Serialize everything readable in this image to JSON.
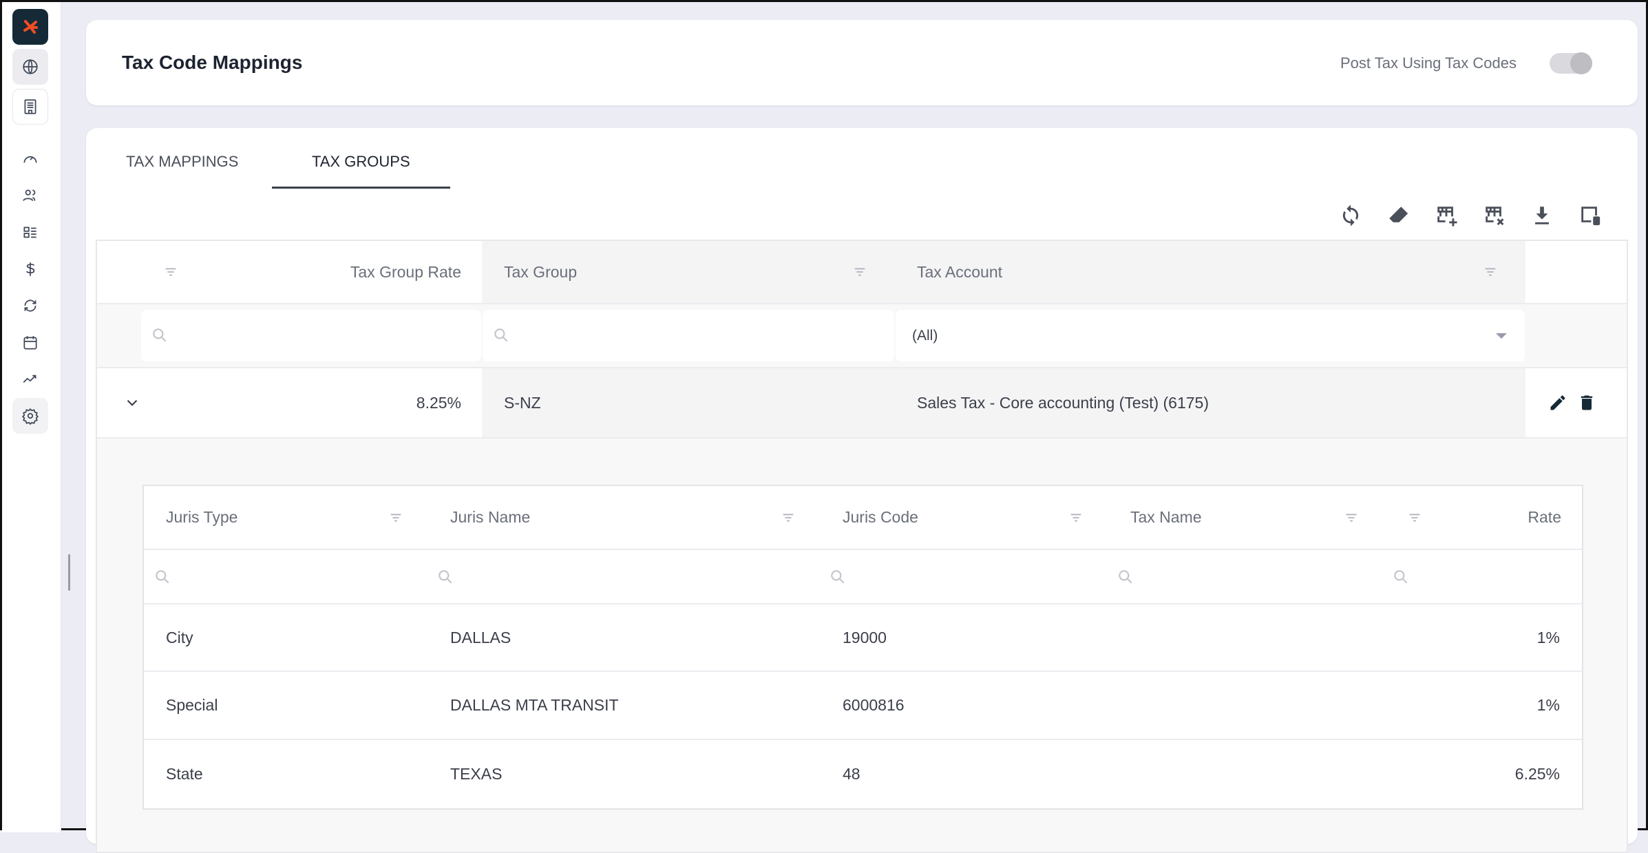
{
  "header": {
    "title": "Tax Code Mappings",
    "toggle_label": "Post Tax Using Tax Codes",
    "toggle_on": false
  },
  "sidebar": {
    "items": [
      "logo",
      "globe-icon",
      "building-icon",
      "dashboard-icon",
      "users-icon",
      "list-icon",
      "dollar-icon",
      "sync-icon",
      "calendar-icon",
      "trend-icon",
      "settings-icon"
    ]
  },
  "tabs": [
    {
      "label": "TAX MAPPINGS"
    },
    {
      "label": "TAX GROUPS",
      "active": true
    }
  ],
  "toolbar": [
    "refresh",
    "clear-filters",
    "add-row",
    "delete-row",
    "download",
    "column-chooser"
  ],
  "grid": {
    "columns": [
      "Tax Group Rate",
      "Tax Group",
      "Tax Account"
    ],
    "filter_account": "(All)",
    "rows": [
      {
        "rate": "8.25%",
        "group": "S-NZ",
        "account": "Sales Tax - Core accounting (Test) (6175)"
      }
    ]
  },
  "detail": {
    "columns": [
      "Juris Type",
      "Juris Name",
      "Juris Code",
      "Tax Name",
      "Rate"
    ],
    "rows": [
      {
        "type": "City",
        "name": "DALLAS",
        "code": "19000",
        "tax_name": "",
        "rate": "1%"
      },
      {
        "type": "Special",
        "name": "DALLAS MTA TRANSIT",
        "code": "6000816",
        "tax_name": "",
        "rate": "1%"
      },
      {
        "type": "State",
        "name": "TEXAS",
        "code": "48",
        "tax_name": "",
        "rate": "6.25%"
      }
    ]
  },
  "colors": {
    "accent": "#f04e23",
    "logo_bg": "#152a36"
  }
}
